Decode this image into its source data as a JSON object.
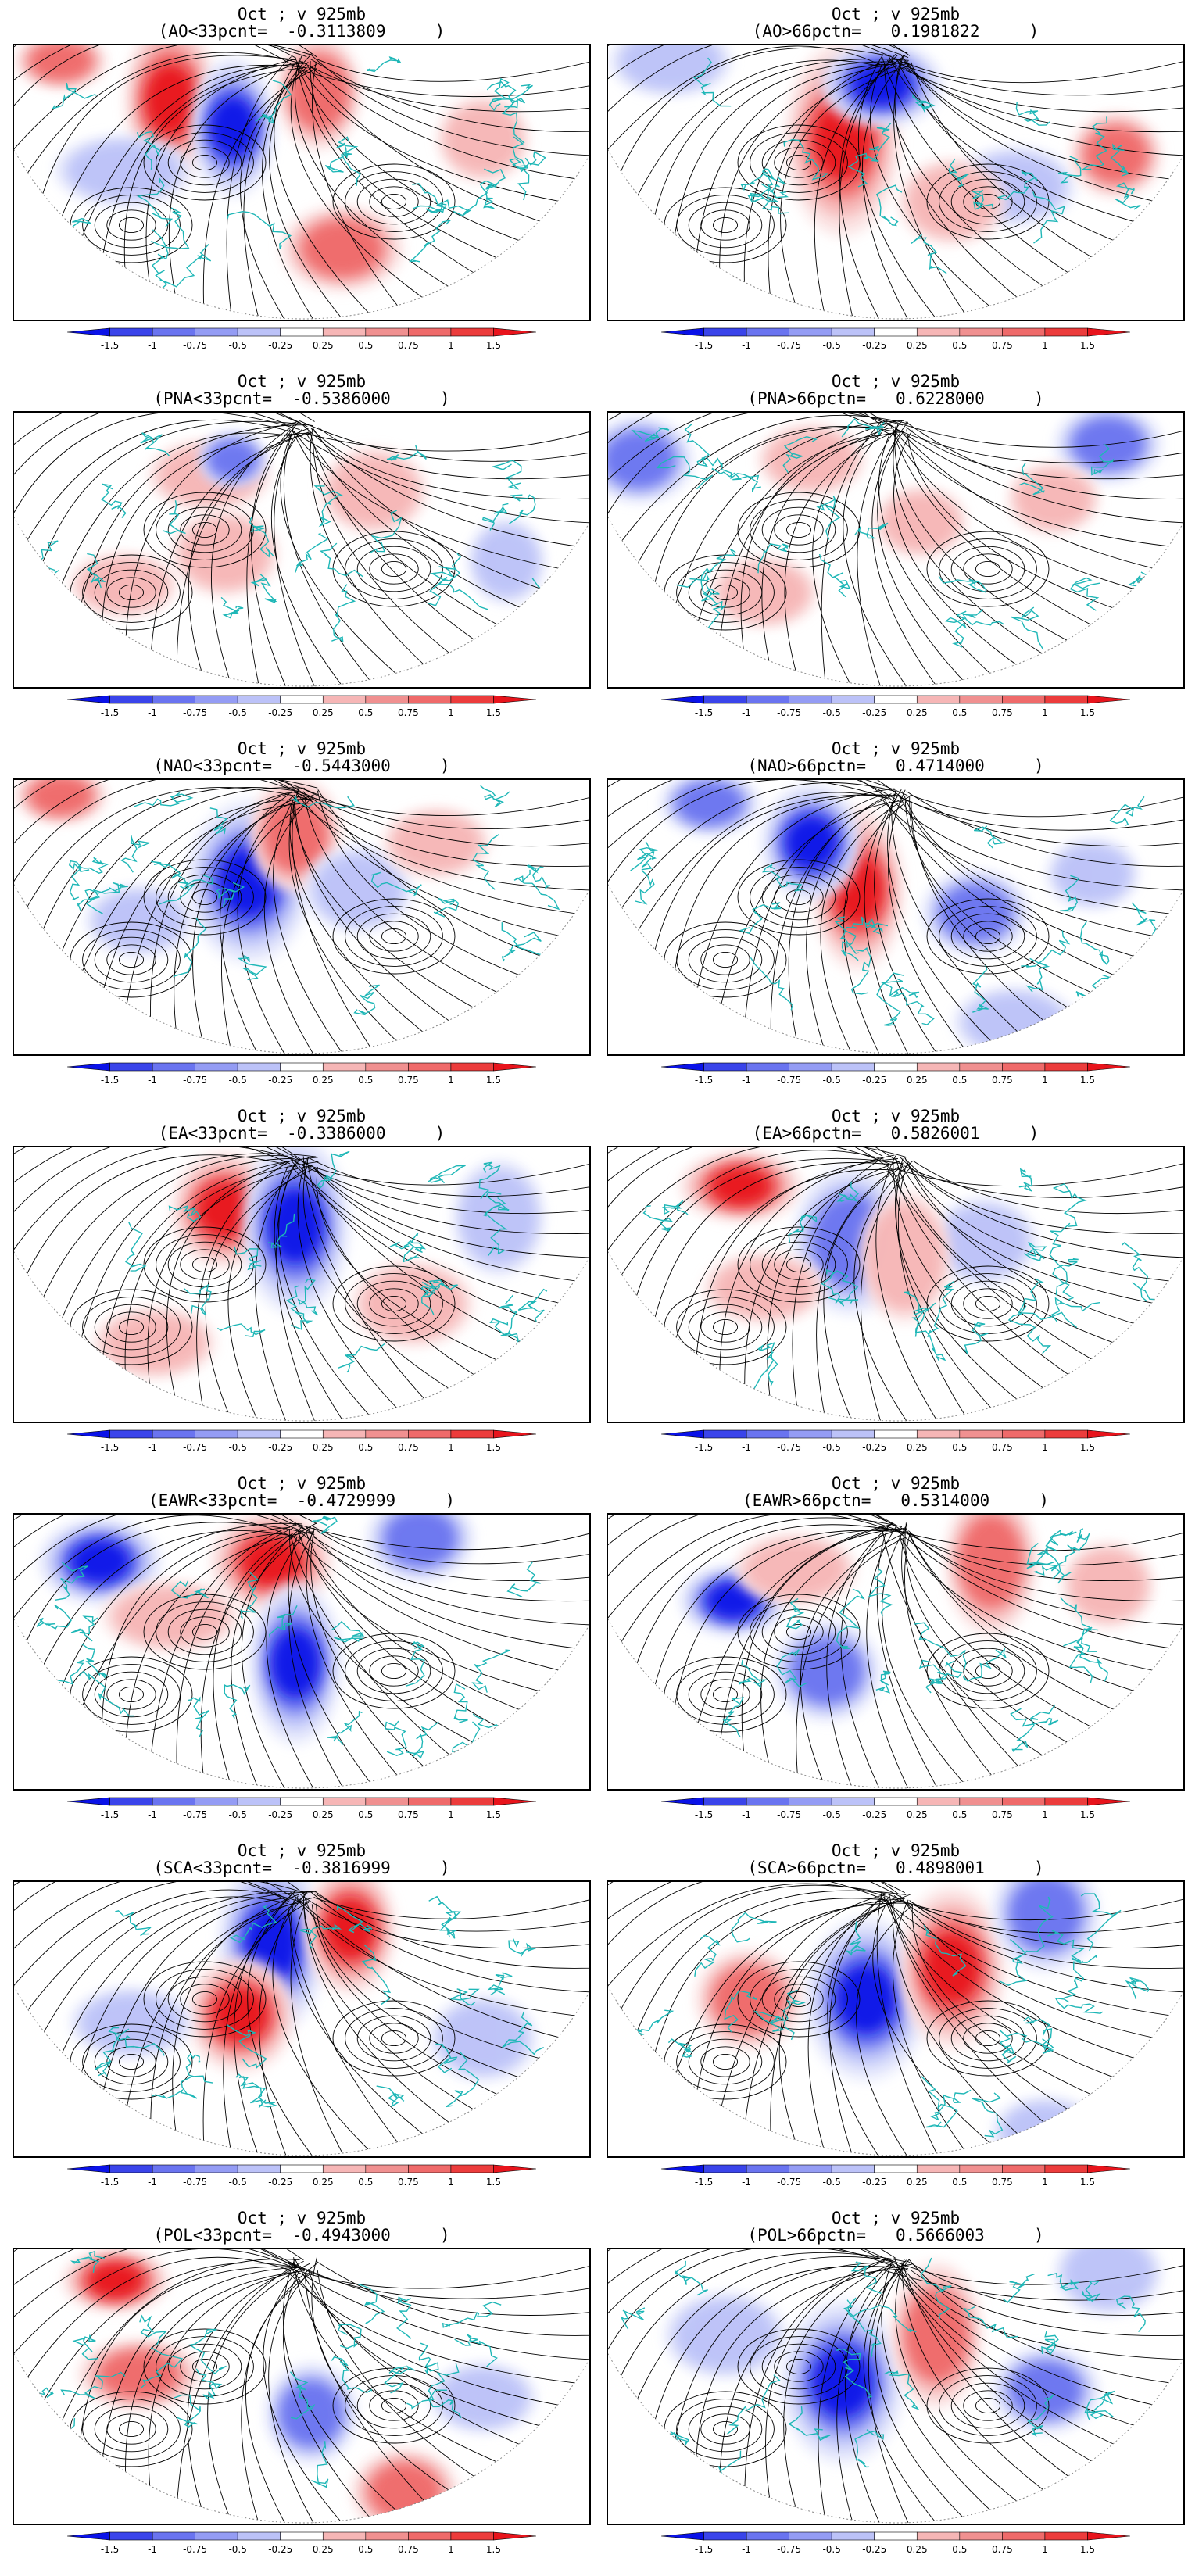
{
  "colors": {
    "land_outline": "#1fb7b7",
    "streamline": "#000000",
    "strong_blue": "#0a12e8",
    "mid_blue": "#6a74f0",
    "light_blue": "#bcc2f8",
    "pale_blue": "#e4e7fc",
    "pale_red": "#fbe2e2",
    "light_red": "#f6b6b6",
    "mid_red": "#ef6a6a",
    "strong_red": "#e8141c"
  },
  "colorbar": {
    "labels": [
      "-1.5",
      "-1",
      "-0.75",
      "-0.5",
      "-0.25",
      "0.25",
      "0.5",
      "0.75",
      "1",
      "1.5"
    ],
    "fills": [
      "#0a12e8",
      "#3a44ea",
      "#6a74f0",
      "#949cf4",
      "#bcc2f8",
      "#ffffff",
      "#f6b6b6",
      "#f09090",
      "#ef6a6a",
      "#ec3c3c",
      "#e8141c"
    ]
  },
  "panels": [
    {
      "line1": "Oct ; v 925mb",
      "line2": "(AO<33pcnt=  -0.3113809     )"
    },
    {
      "line1": "Oct ; v 925mb",
      "line2": "(AO>66pctn=   0.1981822     )"
    },
    {
      "line1": "Oct ; v 925mb",
      "line2": "(PNA<33pcnt=  -0.5386000     )"
    },
    {
      "line1": "Oct ; v 925mb",
      "line2": "(PNA>66pctn=   0.6228000     )"
    },
    {
      "line1": "Oct ; v 925mb",
      "line2": "(NAO<33pcnt=  -0.5443000     )"
    },
    {
      "line1": "Oct ; v 925mb",
      "line2": "(NAO>66pctn=   0.4714000     )"
    },
    {
      "line1": "Oct ; v 925mb",
      "line2": "(EA<33pcnt=  -0.3386000     )"
    },
    {
      "line1": "Oct ; v 925mb",
      "line2": "(EA>66pctn=   0.5826001     )"
    },
    {
      "line1": "Oct ; v 925mb",
      "line2": "(EAWR<33pcnt=  -0.4729999     )"
    },
    {
      "line1": "Oct ; v 925mb",
      "line2": "(EAWR>66pctn=   0.5314000     )"
    },
    {
      "line1": "Oct ; v 925mb",
      "line2": "(SCA<33pcnt=  -0.3816999     )"
    },
    {
      "line1": "Oct ; v 925mb",
      "line2": "(SCA>66pctn=   0.4898001     )"
    },
    {
      "line1": "Oct ; v 925mb",
      "line2": "(POL<33pcnt=  -0.4943000     )"
    },
    {
      "line1": "Oct ; v 925mb",
      "line2": "(POL>66pctn=   0.5666003     )"
    }
  ]
}
